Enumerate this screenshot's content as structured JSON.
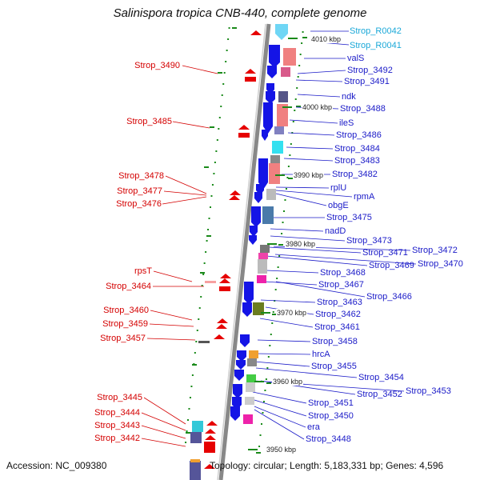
{
  "title": "Salinispora tropica CNB-440, complete genome",
  "footer": {
    "accession": "Accession: NC_009380",
    "topology": "Topology: circular; Length: 5,183,331 bp; Genes: 4,596"
  },
  "colors": {
    "reverse_label": "#d40000",
    "forward_label": "#1a1ac8",
    "rna_label": "#1aa8d8",
    "cds_forward": "#1414e6",
    "cds_reverse": "#e60000",
    "backbone": "#888888"
  },
  "kbp_markers": [
    "4010 kbp",
    "4000 kbp",
    "3990 kbp",
    "3980 kbp",
    "3970 kbp",
    "3960 kbp",
    "3950 kbp"
  ],
  "left_labels": [
    "Strop_3490",
    "Strop_3485",
    "Strop_3478",
    "Strop_3477",
    "Strop_3476",
    "rpsT",
    "Strop_3464",
    "Strop_3460",
    "Strop_3459",
    "Strop_3457",
    "Strop_3445",
    "Strop_3444",
    "Strop_3443",
    "Strop_3442"
  ],
  "right_labels": [
    "Strop_R0042",
    "Strop_R0041",
    "valS",
    "Strop_3492",
    "Strop_3491",
    "ndk",
    "Strop_3488",
    "ileS",
    "Strop_3486",
    "Strop_3484",
    "Strop_3483",
    "Strop_3482",
    "rplU",
    "rpmA",
    "obgE",
    "Strop_3475",
    "nadD",
    "Strop_3473",
    "Strop_3471",
    "Strop_3472",
    "Strop_3469",
    "Strop_3470",
    "Strop_3468",
    "Strop_3467",
    "Strop_3466",
    "Strop_3463",
    "Strop_3462",
    "Strop_3461",
    "Strop_3458",
    "hrcA",
    "Strop_3455",
    "Strop_3454",
    "Strop_3452",
    "Strop_3453",
    "Strop_3451",
    "Strop_3450",
    "era",
    "Strop_3448"
  ]
}
